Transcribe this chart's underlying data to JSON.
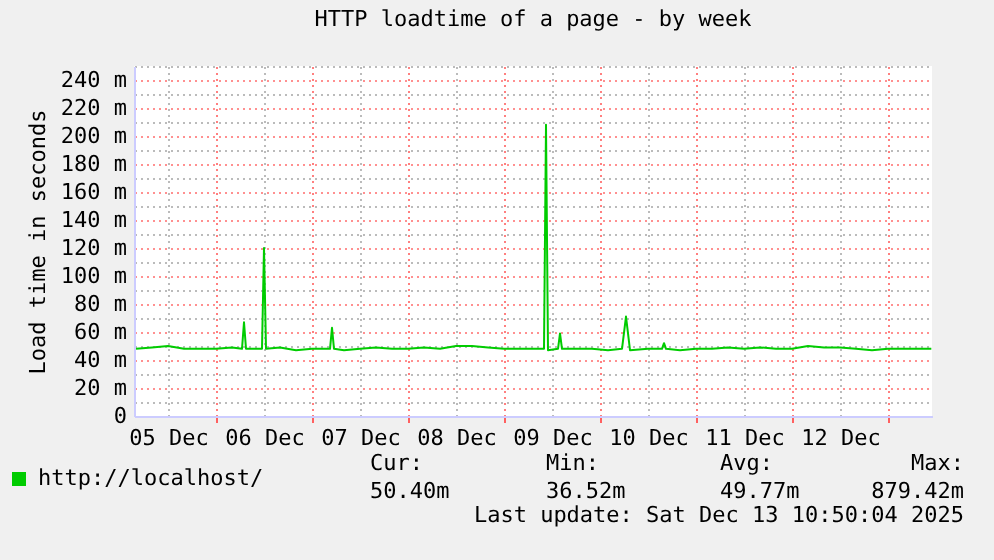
{
  "chart_data": {
    "type": "line",
    "title": "HTTP loadtime of a page - by week",
    "ylabel": "Load time in seconds",
    "xlim": [
      "2025-12-05T03:30",
      "2025-12-13T11:00"
    ],
    "xticks": [
      {
        "value": "2025-12-05T12:00",
        "label": "05 Dec"
      },
      {
        "value": "2025-12-06T00:00",
        "label": null
      },
      {
        "value": "2025-12-06T12:00",
        "label": "06 Dec"
      },
      {
        "value": "2025-12-07T00:00",
        "label": null
      },
      {
        "value": "2025-12-07T12:00",
        "label": "07 Dec"
      },
      {
        "value": "2025-12-08T00:00",
        "label": null
      },
      {
        "value": "2025-12-08T12:00",
        "label": "08 Dec"
      },
      {
        "value": "2025-12-09T00:00",
        "label": null
      },
      {
        "value": "2025-12-09T12:00",
        "label": "09 Dec"
      },
      {
        "value": "2025-12-10T00:00",
        "label": null
      },
      {
        "value": "2025-12-10T12:00",
        "label": "10 Dec"
      },
      {
        "value": "2025-12-11T00:00",
        "label": null
      },
      {
        "value": "2025-12-11T12:00",
        "label": "11 Dec"
      },
      {
        "value": "2025-12-12T00:00",
        "label": null
      },
      {
        "value": "2025-12-12T12:00",
        "label": "12 Dec"
      },
      {
        "value": "2025-12-13T00:00",
        "label": null
      }
    ],
    "ylim": [
      0,
      250
    ],
    "yticks": [
      0,
      {
        "value": 10,
        "label": null
      },
      {
        "value": 20,
        "label": "20 m"
      },
      {
        "value": 30,
        "label": null
      },
      {
        "value": 40,
        "label": "40 m"
      },
      {
        "value": 50,
        "label": null
      },
      {
        "value": 60,
        "label": "60 m"
      },
      {
        "value": 70,
        "label": null
      },
      {
        "value": 80,
        "label": "80 m"
      },
      {
        "value": 90,
        "label": null
      },
      {
        "value": 100,
        "label": "100 m"
      },
      {
        "value": 110,
        "label": null
      },
      {
        "value": 120,
        "label": "120 m"
      },
      {
        "value": 130,
        "label": null
      },
      {
        "value": 140,
        "label": "140 m"
      },
      {
        "value": 150,
        "label": null
      },
      {
        "value": 160,
        "label": "160 m"
      },
      {
        "value": 170,
        "label": null
      },
      {
        "value": 180,
        "label": "180 m"
      },
      {
        "value": 190,
        "label": null
      },
      {
        "value": 200,
        "label": "200 m"
      },
      {
        "value": 210,
        "label": null
      },
      {
        "value": 220,
        "label": "220 m"
      },
      {
        "value": 230,
        "label": null
      },
      {
        "value": 240,
        "label": "240 m"
      },
      {
        "value": 250,
        "label": null
      }
    ],
    "grid": true,
    "legend": "bottom left",
    "x": [
      "2025-12-05T04:00",
      "2025-12-05T08:00",
      "2025-12-05T12:00",
      "2025-12-05T16:00",
      "2025-12-05T20:00",
      "2025-12-06T00:00",
      "2025-12-06T04:00",
      "2025-12-06T06:30",
      "2025-12-06T07:00",
      "2025-12-06T07:30",
      "2025-12-06T11:30",
      "2025-12-06T12:00",
      "2025-12-06T12:30",
      "2025-12-06T16:00",
      "2025-12-06T20:00",
      "2025-12-07T00:00",
      "2025-12-07T04:30",
      "2025-12-07T05:00",
      "2025-12-07T05:30",
      "2025-12-07T08:00",
      "2025-12-07T12:00",
      "2025-12-07T16:00",
      "2025-12-07T20:00",
      "2025-12-08T00:00",
      "2025-12-08T04:00",
      "2025-12-08T08:00",
      "2025-12-08T12:00",
      "2025-12-08T16:00",
      "2025-12-08T20:00",
      "2025-12-09T00:00",
      "2025-12-09T04:00",
      "2025-12-09T08:00",
      "2025-12-09T10:00",
      "2025-12-09T10:30",
      "2025-12-09T11:00",
      "2025-12-09T13:30",
      "2025-12-09T14:00",
      "2025-12-09T14:30",
      "2025-12-09T18:00",
      "2025-12-09T22:00",
      "2025-12-10T02:00",
      "2025-12-10T05:30",
      "2025-12-10T06:30",
      "2025-12-10T07:30",
      "2025-12-10T12:00",
      "2025-12-10T15:30",
      "2025-12-10T16:00",
      "2025-12-10T16:30",
      "2025-12-10T20:00",
      "2025-12-11T00:00",
      "2025-12-11T04:00",
      "2025-12-11T08:00",
      "2025-12-11T12:00",
      "2025-12-11T16:00",
      "2025-12-11T20:00",
      "2025-12-12T00:00",
      "2025-12-12T04:00",
      "2025-12-12T08:00",
      "2025-12-12T12:00",
      "2025-12-12T16:00",
      "2025-12-12T20:00",
      "2025-12-13T00:00",
      "2025-12-13T04:00",
      "2025-12-13T08:00",
      "2025-12-13T10:50"
    ],
    "series": [
      {
        "name": "http://localhost/",
        "color": "#00cc00",
        "values": [
          48,
          49,
          50,
          48,
          48,
          48,
          49,
          48,
          67,
          48,
          48,
          120,
          48,
          49,
          47,
          48,
          48,
          63,
          48,
          47,
          48,
          49,
          48,
          48,
          49,
          48,
          50,
          50,
          49,
          48,
          48,
          48,
          48,
          208,
          47,
          48,
          59,
          48,
          48,
          48,
          47,
          48,
          71,
          47,
          48,
          48,
          52,
          48,
          47,
          48,
          48,
          49,
          48,
          49,
          48,
          48,
          50,
          49,
          49,
          48,
          47,
          48,
          48,
          48,
          48
        ]
      }
    ],
    "annotations": [
      "Cur:",
      "50.40m",
      "Min:",
      "36.52m",
      "Avg:",
      "49.77m",
      "Max:",
      "879.42m",
      "Last update: Sat Dec 13 10:50:04 2025"
    ]
  }
}
